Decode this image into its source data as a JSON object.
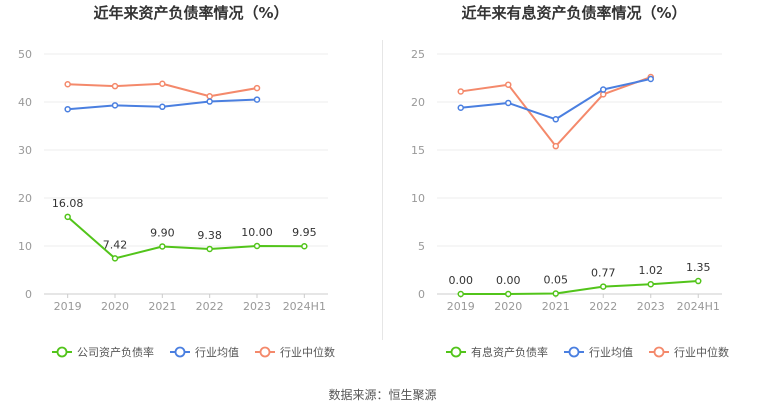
{
  "chart_data": [
    {
      "type": "line",
      "title": "近年来资产负债率情况（%）",
      "categories": [
        "2019",
        "2020",
        "2021",
        "2022",
        "2023",
        "2024H1"
      ],
      "ylim": [
        0,
        50
      ],
      "yticks": [
        0,
        10,
        20,
        30,
        40,
        50
      ],
      "grid": true,
      "legend": "bottom",
      "series": [
        {
          "name": "公司资产负债率",
          "color": "#52c41a",
          "labels": true,
          "values": [
            16.08,
            7.42,
            9.9,
            9.38,
            10.0,
            9.95
          ],
          "value_labels": [
            "16.08",
            "7.42",
            "9.90",
            "9.38",
            "10.00",
            "9.95"
          ]
        },
        {
          "name": "行业均值",
          "color": "#4a7fe0",
          "labels": false,
          "values": [
            38.5,
            39.3,
            39.0,
            40.1,
            40.5,
            null
          ]
        },
        {
          "name": "行业中位数",
          "color": "#f4896b",
          "labels": false,
          "values": [
            43.7,
            43.3,
            43.8,
            41.2,
            42.9,
            null
          ]
        }
      ]
    },
    {
      "type": "line",
      "title": "近年来有息资产负债率情况（%）",
      "categories": [
        "2019",
        "2020",
        "2021",
        "2022",
        "2023",
        "2024H1"
      ],
      "ylim": [
        0,
        25
      ],
      "yticks": [
        0,
        5,
        10,
        15,
        20,
        25
      ],
      "grid": true,
      "legend": "bottom",
      "series": [
        {
          "name": "有息资产负债率",
          "color": "#52c41a",
          "labels": true,
          "values": [
            0.0,
            0.0,
            0.05,
            0.77,
            1.02,
            1.35
          ],
          "value_labels": [
            "0.00",
            "0.00",
            "0.05",
            "0.77",
            "1.02",
            "1.35"
          ]
        },
        {
          "name": "行业均值",
          "color": "#4a7fe0",
          "labels": false,
          "values": [
            19.4,
            19.9,
            18.2,
            21.3,
            22.4,
            null
          ]
        },
        {
          "name": "行业中位数",
          "color": "#f4896b",
          "labels": false,
          "values": [
            21.1,
            21.8,
            15.4,
            20.8,
            22.6,
            null
          ]
        }
      ]
    }
  ],
  "source": "数据来源：恒生聚源"
}
